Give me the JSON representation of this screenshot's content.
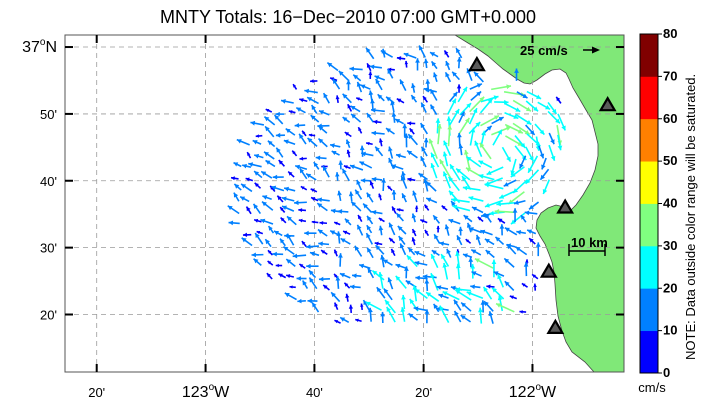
{
  "map": {
    "title": "MNTY Totals: 16−Dec−2010 07:00 GMT+0.000",
    "lat_labels": [
      {
        "text": "37",
        "sup": "o",
        "suffix": "N",
        "lat": 37.0,
        "big": true
      },
      {
        "text": "50'",
        "lat": 36.8333
      },
      {
        "text": "40'",
        "lat": 36.6667
      },
      {
        "text": "30'",
        "lat": 36.5
      },
      {
        "text": "20'",
        "lat": 36.3333
      }
    ],
    "lon_labels": [
      {
        "text": "20'",
        "lon": -123.333
      },
      {
        "text": "123",
        "sup": "o",
        "suffix": "W",
        "lon": -123.0,
        "big": true
      },
      {
        "text": "40'",
        "lon": -122.667
      },
      {
        "text": "20'",
        "lon": -122.333
      },
      {
        "text": "122",
        "sup": "o",
        "suffix": "W",
        "lon": -122.0,
        "big": true
      }
    ],
    "lat_range": [
      36.19,
      37.03
    ],
    "lon_range": [
      -123.43,
      -121.72
    ],
    "grid": true,
    "land_color": "#80e878",
    "scale_arrow_label": "25 cm/s",
    "scale_bar_label": "10 km",
    "stations": [
      {
        "lon": -122.17,
        "lat": 36.955
      },
      {
        "lon": -121.77,
        "lat": 36.855
      },
      {
        "lon": -121.9,
        "lat": 36.6
      },
      {
        "lon": -121.95,
        "lat": 36.44
      },
      {
        "lon": -121.93,
        "lat": 36.3
      }
    ]
  },
  "colorbar": {
    "tick_labels": [
      "0",
      "10",
      "20",
      "30",
      "40",
      "50",
      "60",
      "70",
      "80"
    ],
    "colors": [
      "#0000ff",
      "#0080ff",
      "#00ffff",
      "#80ff80",
      "#ffff00",
      "#ff8000",
      "#ff0000",
      "#800000"
    ],
    "units": "cm/s",
    "note": "NOTE: Data outside color range will be saturated."
  }
}
